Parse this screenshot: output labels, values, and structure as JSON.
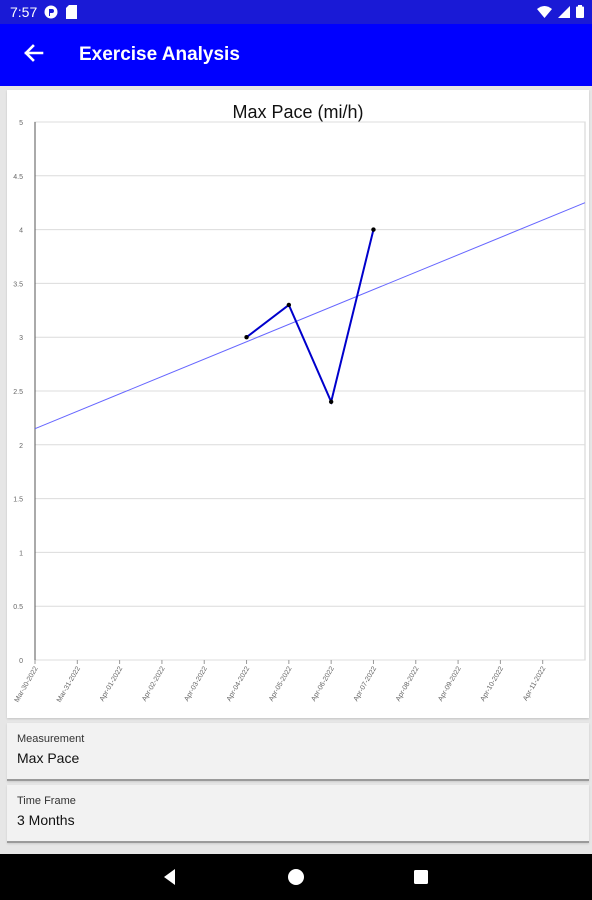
{
  "status_bar": {
    "time": "7:57",
    "left_icons": [
      "notification-app-icon",
      "sd-card-icon"
    ],
    "right_icons": [
      "wifi-icon",
      "signal-icon",
      "battery-icon"
    ]
  },
  "app_bar": {
    "title": "Exercise Analysis",
    "back_icon": "arrow-back-icon",
    "background": "#0000ff"
  },
  "chart_data": {
    "type": "line",
    "title": "Max Pace (mi/h)",
    "xlabel": "",
    "ylabel": "",
    "ylim": [
      0,
      5
    ],
    "yticks": [
      "0",
      "0.5",
      "1",
      "1.5",
      "2",
      "2.5",
      "3",
      "3.5",
      "4",
      "4.5",
      "5"
    ],
    "xticks": [
      "Mar-30-2022",
      "Mar-31-2022",
      "Apr-01-2022",
      "Apr-02-2022",
      "Apr-03-2022",
      "Apr-04-2022",
      "Apr-05-2022",
      "Apr-06-2022",
      "Apr-07-2022",
      "Apr-08-2022",
      "Apr-09-2022",
      "Apr-10-2022",
      "Apr-11-2022"
    ],
    "xlim": [
      "Mar-30-2022",
      "Apr-12-2022"
    ],
    "grid": true,
    "series": [
      {
        "color": "#0000cc",
        "points": [
          {
            "x": "Apr-04-2022",
            "y": 3.0
          },
          {
            "x": "Apr-05-2022",
            "y": 3.3
          },
          {
            "x": "Apr-06-2022",
            "y": 2.4
          },
          {
            "x": "Apr-07-2022",
            "y": 4.0
          }
        ]
      }
    ],
    "trendline": {
      "color": "#6666ff",
      "start": {
        "x": "Mar-30-2022",
        "y": 2.15
      },
      "end": {
        "x": "Apr-12-2022",
        "y": 4.25
      }
    }
  },
  "fields": {
    "measurement": {
      "label": "Measurement",
      "value": "Max Pace"
    },
    "time_frame": {
      "label": "Time Frame",
      "value": "3 Months"
    }
  },
  "nav_bar": {
    "icons": [
      "back-triangle-icon",
      "home-circle-icon",
      "recents-square-icon"
    ]
  }
}
